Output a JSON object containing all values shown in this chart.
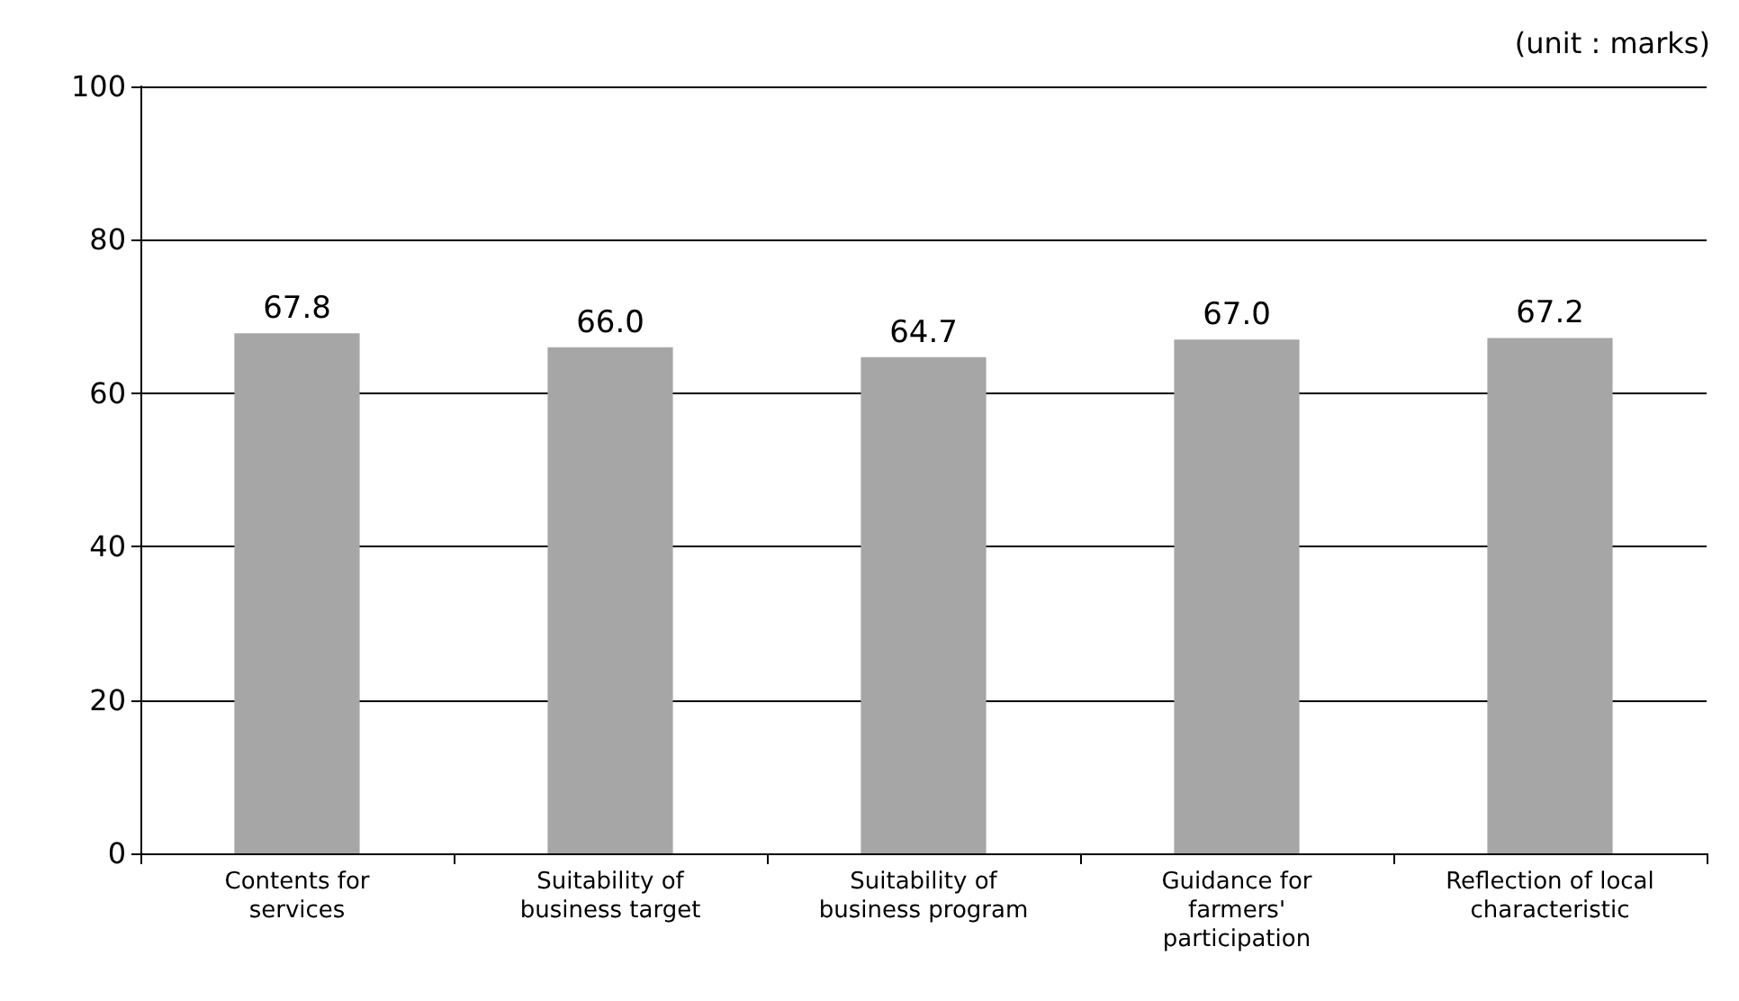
{
  "chart_data": {
    "type": "bar",
    "categories": [
      "Contents for\nservices",
      "Suitability of\nbusiness target",
      "Suitability of\nbusiness program",
      "Guidance for\nfarmers'\nparticipation",
      "Reflection of local\ncharacteristic"
    ],
    "values": [
      67.8,
      66.0,
      64.7,
      67.0,
      67.2
    ],
    "value_labels": [
      "67.8",
      "66.0",
      "64.7",
      "67.0",
      "67.2"
    ],
    "color": "#a6a6a6",
    "ylim": [
      0,
      100
    ],
    "yticks": [
      0,
      20,
      40,
      60,
      80,
      100
    ],
    "grid": "y",
    "annotations": [
      "(unit : marks)"
    ]
  }
}
